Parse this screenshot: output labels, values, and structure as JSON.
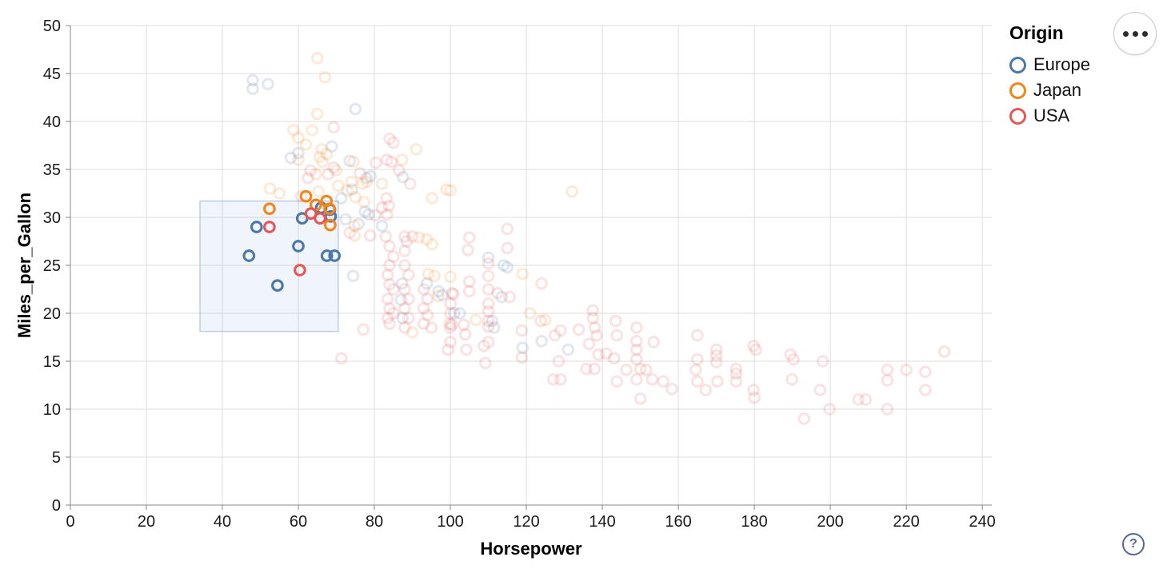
{
  "legend": {
    "title": "Origin",
    "items": [
      {
        "label": "Europe",
        "color": "#4c78a8"
      },
      {
        "label": "Japan",
        "color": "#f58518"
      },
      {
        "label": "USA",
        "color": "#e45756"
      }
    ]
  },
  "actions_menu": {
    "icon": "ellipsis-menu"
  },
  "help": {
    "label": "?"
  },
  "chart_data": {
    "type": "scatter",
    "title": "",
    "xlabel": "Horsepower",
    "ylabel": "Miles_per_Gallon",
    "xlim": [
      0,
      242.5
    ],
    "ylim": [
      0,
      50
    ],
    "x_ticks": [
      0,
      20,
      40,
      60,
      80,
      100,
      120,
      140,
      160,
      180,
      200,
      220,
      240
    ],
    "y_ticks": [
      0,
      5,
      10,
      15,
      20,
      25,
      30,
      35,
      40,
      45,
      50
    ],
    "grid": true,
    "legend_position": "top-right",
    "mark": "ring",
    "unselected_opacity": 0.17,
    "brush": {
      "x": [
        34.1,
        70.5
      ],
      "y": [
        18.1,
        31.7
      ],
      "fill": "#82a5dc",
      "fill_opacity": 0.12,
      "stroke": "#9db8e0"
    },
    "series": [
      {
        "name": "Europe",
        "color": "#4c78a8",
        "selected": [
          [
            49,
            29
          ],
          [
            47,
            26
          ],
          [
            60,
            27
          ],
          [
            67.5,
            26
          ],
          [
            69.5,
            26
          ],
          [
            54.5,
            22.9
          ],
          [
            61,
            29.9
          ],
          [
            66,
            31
          ],
          [
            68.3,
            30.8
          ],
          [
            68.5,
            30.1
          ]
        ],
        "unselected": [
          [
            48,
            44.3
          ],
          [
            48,
            43.4
          ],
          [
            52,
            43.9
          ],
          [
            75,
            41.3
          ],
          [
            60,
            36.7
          ],
          [
            58,
            36.2
          ],
          [
            68.8,
            37.4
          ],
          [
            73.5,
            35.9
          ],
          [
            77.9,
            34.1
          ],
          [
            74.1,
            32.9
          ],
          [
            79,
            34.3
          ],
          [
            71.3,
            32
          ],
          [
            77.5,
            30.6
          ],
          [
            78.5,
            30.3
          ],
          [
            75.8,
            29.3
          ],
          [
            82,
            29.1
          ],
          [
            87.5,
            34.2
          ],
          [
            72.4,
            29.8
          ],
          [
            74.4,
            23.9
          ],
          [
            87,
            21.4
          ],
          [
            87.4,
            19.5
          ],
          [
            87.3,
            23.1
          ],
          [
            93.8,
            23.1
          ],
          [
            96.9,
            22.3
          ],
          [
            97.9,
            21.9
          ],
          [
            101,
            20
          ],
          [
            102.5,
            20
          ],
          [
            113.5,
            21.7
          ],
          [
            110,
            25.8
          ],
          [
            115,
            24.8
          ],
          [
            111,
            19.2
          ],
          [
            111.5,
            18.5
          ],
          [
            114,
            25
          ],
          [
            119,
            16.4
          ],
          [
            124,
            17.1
          ],
          [
            131,
            16.2
          ]
        ]
      },
      {
        "name": "Japan",
        "color": "#f58518",
        "selected": [
          [
            52.4,
            30.9
          ],
          [
            64.6,
            31.3
          ],
          [
            67.4,
            31.7
          ],
          [
            68.2,
            30.9
          ],
          [
            68.4,
            29.2
          ],
          [
            62,
            32.2
          ]
        ],
        "unselected": [
          [
            65,
            46.6
          ],
          [
            67,
            44.6
          ],
          [
            65,
            40.8
          ],
          [
            58.7,
            39.1
          ],
          [
            63.6,
            39.1
          ],
          [
            60,
            38.3
          ],
          [
            62,
            37.6
          ],
          [
            66.1,
            37.1
          ],
          [
            67.4,
            36.6
          ],
          [
            60,
            36
          ],
          [
            66.3,
            35.8
          ],
          [
            65.6,
            36.3
          ],
          [
            64.6,
            34.5
          ],
          [
            69.9,
            34.9
          ],
          [
            74.5,
            35.8
          ],
          [
            70.5,
            33.3
          ],
          [
            65.3,
            32.7
          ],
          [
            52.5,
            33
          ],
          [
            55,
            32.5
          ],
          [
            74,
            33.7
          ],
          [
            76.9,
            33.5
          ],
          [
            78,
            33.7
          ],
          [
            82,
            33.5
          ],
          [
            91,
            37.1
          ],
          [
            87.3,
            36
          ],
          [
            99,
            32.9
          ],
          [
            95.2,
            32
          ],
          [
            100,
            32.8
          ],
          [
            132,
            32.7
          ],
          [
            72.9,
            32.8
          ],
          [
            74.8,
            29.1
          ],
          [
            74.8,
            28.1
          ],
          [
            75,
            32.1
          ],
          [
            77.3,
            31.6
          ],
          [
            91.7,
            27.9
          ],
          [
            93.8,
            27.7
          ],
          [
            95.2,
            27.2
          ],
          [
            94.2,
            24.1
          ],
          [
            95.8,
            23.9
          ],
          [
            100,
            23.8
          ],
          [
            96.8,
            21.8
          ],
          [
            90,
            18
          ],
          [
            106.7,
            19.3
          ],
          [
            119,
            24.1
          ],
          [
            121,
            20
          ],
          [
            125,
            19.3
          ]
        ]
      },
      {
        "name": "USA",
        "color": "#e45756",
        "selected": [
          [
            52.4,
            29
          ],
          [
            63.3,
            30.4
          ],
          [
            65.7,
            29.9
          ],
          [
            60.4,
            24.5
          ]
        ],
        "unselected": [
          [
            69.3,
            39.4
          ],
          [
            84,
            38.2
          ],
          [
            85,
            37.8
          ],
          [
            63.2,
            34.9
          ],
          [
            67.8,
            34.5
          ],
          [
            69.3,
            35.2
          ],
          [
            62.5,
            34.1
          ],
          [
            60.8,
            32.2
          ],
          [
            83.2,
            32
          ],
          [
            84.5,
            35.8
          ],
          [
            80.4,
            35.7
          ],
          [
            83.3,
            36
          ],
          [
            76.2,
            34.6
          ],
          [
            86.5,
            34.9
          ],
          [
            89.4,
            33.5
          ],
          [
            83.8,
            31.2
          ],
          [
            82,
            31
          ],
          [
            80.2,
            30.2
          ],
          [
            83.3,
            30.3
          ],
          [
            73.5,
            28.4
          ],
          [
            78.9,
            28.1
          ],
          [
            88,
            28
          ],
          [
            88.5,
            27.5
          ],
          [
            88,
            26.5
          ],
          [
            90,
            28
          ],
          [
            88,
            25
          ],
          [
            89,
            24
          ],
          [
            88,
            22.5
          ],
          [
            89,
            21.5
          ],
          [
            88,
            20.5
          ],
          [
            89,
            19.5
          ],
          [
            88,
            18.5
          ],
          [
            83,
            28
          ],
          [
            84,
            27
          ],
          [
            85,
            25.9
          ],
          [
            84,
            25
          ],
          [
            83.5,
            24
          ],
          [
            84,
            23
          ],
          [
            85,
            22.5
          ],
          [
            83.5,
            21.5
          ],
          [
            84,
            20.5
          ],
          [
            85,
            20
          ],
          [
            83.5,
            19.5
          ],
          [
            84,
            18.9
          ],
          [
            93,
            22.5
          ],
          [
            94,
            21.5
          ],
          [
            93,
            20.5
          ],
          [
            94,
            19.8
          ],
          [
            93,
            18.9
          ],
          [
            95,
            18.5
          ],
          [
            77.1,
            18.3
          ],
          [
            71.3,
            15.3
          ],
          [
            105,
            27.9
          ],
          [
            104.6,
            26.6
          ],
          [
            105,
            23.3
          ],
          [
            105,
            22.3
          ],
          [
            103.5,
            18.8
          ],
          [
            103.9,
            17.8
          ],
          [
            104.2,
            16.2
          ],
          [
            100.4,
            22.1
          ],
          [
            100.8,
            22
          ],
          [
            99.8,
            18.9
          ],
          [
            100.4,
            18.8
          ],
          [
            99.4,
            16.2
          ],
          [
            100,
            21
          ],
          [
            100,
            20
          ],
          [
            100,
            18.5
          ],
          [
            100,
            17
          ],
          [
            110,
            25.2
          ],
          [
            110,
            23.9
          ],
          [
            110,
            22.5
          ],
          [
            110,
            21
          ],
          [
            110,
            20.2
          ],
          [
            110,
            19.2
          ],
          [
            110,
            18.6
          ],
          [
            110,
            17
          ],
          [
            109.2,
            14.8
          ],
          [
            108.8,
            16.6
          ],
          [
            112.4,
            22.1
          ],
          [
            115.6,
            21.7
          ],
          [
            115,
            28.8
          ],
          [
            115,
            26.8
          ],
          [
            118.8,
            18.2
          ],
          [
            118.8,
            15.4
          ],
          [
            123.8,
            19.2
          ],
          [
            124,
            23.1
          ],
          [
            127.5,
            17.7
          ],
          [
            129,
            18.2
          ],
          [
            128.5,
            15
          ],
          [
            127.1,
            13.1
          ],
          [
            129,
            13.1
          ],
          [
            133.8,
            18.3
          ],
          [
            136.5,
            16.8
          ],
          [
            137.5,
            20.3
          ],
          [
            137.5,
            19.5
          ],
          [
            138,
            18.5
          ],
          [
            138.5,
            17.7
          ],
          [
            135.8,
            14.2
          ],
          [
            137.9,
            14.2
          ],
          [
            139,
            15.7
          ],
          [
            141,
            15.8
          ],
          [
            143.5,
            19.2
          ],
          [
            143.8,
            17.7
          ],
          [
            143.1,
            15.3
          ],
          [
            143.8,
            12.9
          ],
          [
            149,
            18.5
          ],
          [
            149,
            17.1
          ],
          [
            149,
            16.2
          ],
          [
            149,
            15.2
          ],
          [
            150,
            14.2
          ],
          [
            149,
            13.1
          ],
          [
            150,
            11.1
          ],
          [
            146.3,
            14.1
          ],
          [
            151.5,
            14.1
          ],
          [
            153.5,
            17
          ],
          [
            153.1,
            13.1
          ],
          [
            156,
            12.9
          ],
          [
            158.3,
            12.1
          ],
          [
            165,
            17.7
          ],
          [
            170,
            16.2
          ],
          [
            170,
            15.6
          ],
          [
            170,
            14.9
          ],
          [
            165,
            15.2
          ],
          [
            164.6,
            14.1
          ],
          [
            165,
            12.9
          ],
          [
            167.2,
            12
          ],
          [
            170.3,
            12.9
          ],
          [
            175.2,
            14.2
          ],
          [
            175.2,
            13.7
          ],
          [
            175.2,
            12.9
          ],
          [
            179.8,
            16.6
          ],
          [
            180.4,
            16.2
          ],
          [
            179.8,
            12
          ],
          [
            180,
            11.2
          ],
          [
            189.5,
            15.7
          ],
          [
            190.3,
            15.2
          ],
          [
            189.9,
            13.1
          ],
          [
            198,
            15
          ],
          [
            197.3,
            12
          ],
          [
            199.8,
            10
          ],
          [
            193.1,
            9
          ],
          [
            207.4,
            11
          ],
          [
            209.3,
            11
          ],
          [
            215,
            14.1
          ],
          [
            215,
            13
          ],
          [
            220,
            14.1
          ],
          [
            225,
            13.9
          ],
          [
            225,
            12
          ],
          [
            215,
            10
          ],
          [
            230,
            16
          ]
        ]
      }
    ]
  }
}
